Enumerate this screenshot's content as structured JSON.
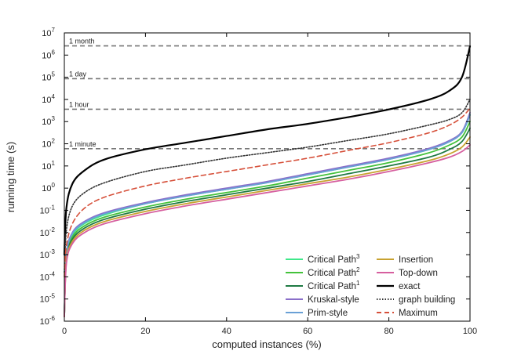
{
  "chart_data": {
    "type": "line",
    "title": "",
    "xlabel": "computed instances (%)",
    "ylabel": "running time (s)",
    "xlim": [
      0,
      100
    ],
    "ylim_log10": [
      -6,
      7
    ],
    "y_scale": "log",
    "x_ticks": [
      {
        "value": 0,
        "label": "0"
      },
      {
        "value": 20,
        "label": "20"
      },
      {
        "value": 40,
        "label": "40"
      },
      {
        "value": 60,
        "label": "60"
      },
      {
        "value": 80,
        "label": "80"
      },
      {
        "value": 100,
        "label": "100"
      }
    ],
    "y_ticks": [
      {
        "exp": 7,
        "base": "10",
        "sup": "7"
      },
      {
        "exp": 6,
        "base": "10",
        "sup": "6"
      },
      {
        "exp": 5,
        "base": "10",
        "sup": "5"
      },
      {
        "exp": 4,
        "base": "10",
        "sup": "4"
      },
      {
        "exp": 3,
        "base": "10",
        "sup": "3"
      },
      {
        "exp": 2,
        "base": "10",
        "sup": "2"
      },
      {
        "exp": 1,
        "base": "10",
        "sup": "1"
      },
      {
        "exp": 0,
        "base": "10",
        "sup": "0"
      },
      {
        "exp": -1,
        "base": "10",
        "sup": "-1"
      },
      {
        "exp": -2,
        "base": "10",
        "sup": "-2"
      },
      {
        "exp": -3,
        "base": "10",
        "sup": "-3"
      },
      {
        "exp": -4,
        "base": "10",
        "sup": "-4"
      },
      {
        "exp": -5,
        "base": "10",
        "sup": "-5"
      },
      {
        "exp": -6,
        "base": "10",
        "sup": "-6"
      }
    ],
    "reference_lines": [
      {
        "label": "1 month",
        "seconds": 2592000
      },
      {
        "label": "1 day",
        "seconds": 86400
      },
      {
        "label": "1 hour",
        "seconds": 3600
      },
      {
        "label": "1 minute",
        "seconds": 60
      }
    ],
    "x": [
      0,
      0.5,
      2,
      5,
      10,
      20,
      30,
      40,
      50,
      60,
      70,
      80,
      90,
      95,
      98,
      100
    ],
    "series": [
      {
        "name": "Critical Path",
        "sup": "3",
        "color": "#3fe88a",
        "style": "solid",
        "log10_values": [
          -5.8,
          -3.0,
          -2.1,
          -1.6,
          -1.2,
          -0.7,
          -0.35,
          -0.05,
          0.25,
          0.6,
          0.95,
          1.3,
          1.75,
          2.1,
          2.5,
          3.3
        ]
      },
      {
        "name": "Critical Path",
        "sup": "2",
        "color": "#44c23b",
        "style": "solid",
        "log10_values": [
          -5.8,
          -3.1,
          -2.2,
          -1.7,
          -1.3,
          -0.85,
          -0.5,
          -0.2,
          0.1,
          0.45,
          0.8,
          1.15,
          1.6,
          1.95,
          2.3,
          3.0
        ]
      },
      {
        "name": "Critical Path",
        "sup": "1",
        "color": "#1f7a43",
        "style": "solid",
        "log10_values": [
          -5.8,
          -3.2,
          -2.3,
          -1.8,
          -1.4,
          -0.95,
          -0.6,
          -0.3,
          0.0,
          0.3,
          0.65,
          1.0,
          1.4,
          1.75,
          2.1,
          2.7
        ]
      },
      {
        "name": "Kruskal-style",
        "sup": "",
        "color": "#8a6fc9",
        "style": "solid",
        "log10_values": [
          -5.8,
          -3.0,
          -2.0,
          -1.5,
          -1.1,
          -0.65,
          -0.3,
          0.0,
          0.3,
          0.65,
          1.0,
          1.35,
          1.8,
          2.15,
          2.55,
          3.4
        ]
      },
      {
        "name": "Prim-style",
        "sup": "",
        "color": "#6aa0d6",
        "style": "solid",
        "log10_values": [
          -5.8,
          -3.05,
          -2.05,
          -1.55,
          -1.15,
          -0.7,
          -0.35,
          -0.05,
          0.25,
          0.6,
          0.95,
          1.3,
          1.75,
          2.1,
          2.5,
          3.3
        ]
      },
      {
        "name": "Insertion",
        "sup": "",
        "color": "#c8a230",
        "style": "solid",
        "log10_values": [
          -5.8,
          -3.3,
          -2.4,
          -1.9,
          -1.5,
          -1.05,
          -0.7,
          -0.4,
          -0.1,
          0.2,
          0.5,
          0.85,
          1.25,
          1.55,
          1.85,
          2.3
        ]
      },
      {
        "name": "Top-down",
        "sup": "",
        "color": "#d65f9f",
        "style": "solid",
        "log10_values": [
          -5.8,
          -3.4,
          -2.5,
          -2.0,
          -1.6,
          -1.15,
          -0.8,
          -0.5,
          -0.2,
          0.1,
          0.4,
          0.75,
          1.15,
          1.4,
          1.65,
          1.95
        ]
      },
      {
        "name": "exact",
        "sup": "",
        "color": "#000000",
        "style": "solid",
        "log10_values": [
          -3.0,
          -0.9,
          0.2,
          0.8,
          1.3,
          1.75,
          2.05,
          2.35,
          2.65,
          2.9,
          3.2,
          3.55,
          4.0,
          4.4,
          5.0,
          6.4
        ]
      },
      {
        "name": "graph building",
        "sup": "",
        "color": "#333333",
        "style": "dotted",
        "log10_values": [
          -3.8,
          -1.9,
          -0.8,
          -0.2,
          0.25,
          0.75,
          1.05,
          1.35,
          1.6,
          1.85,
          2.15,
          2.45,
          2.85,
          3.1,
          3.4,
          4.0
        ]
      },
      {
        "name": "Maximum",
        "sup": "",
        "color": "#d6503a",
        "style": "dashed",
        "log10_values": [
          -4.0,
          -2.6,
          -1.6,
          -0.9,
          -0.4,
          0.1,
          0.45,
          0.75,
          1.05,
          1.35,
          1.7,
          2.05,
          2.5,
          2.85,
          3.2,
          3.6
        ]
      }
    ],
    "legend_position": "bottom-right"
  }
}
